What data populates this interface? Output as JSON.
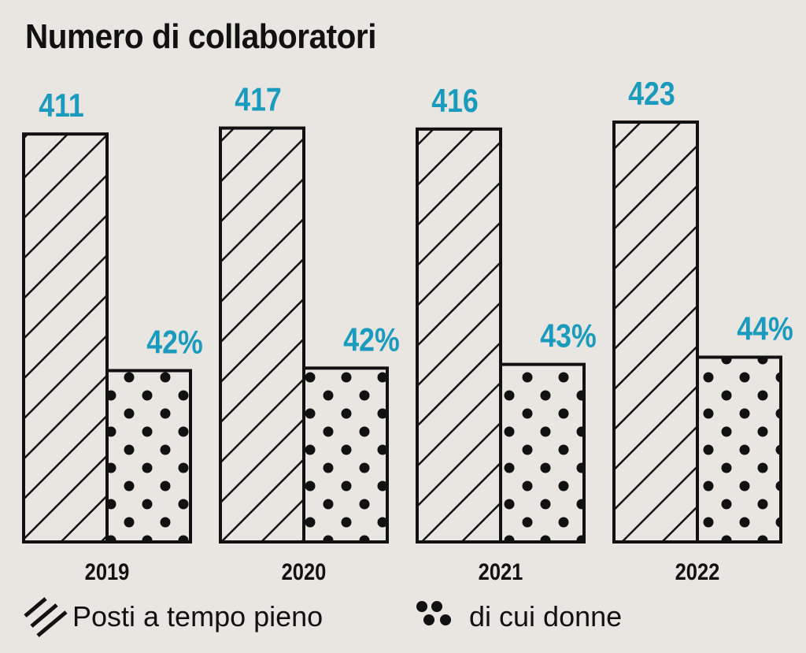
{
  "chart_data": {
    "type": "bar",
    "title": "Numero di collaboratori",
    "categories": [
      "2019",
      "2020",
      "2021",
      "2022"
    ],
    "series": [
      {
        "name": "Posti a tempo pieno",
        "values": [
          411,
          417,
          416,
          423
        ],
        "labels": [
          "411",
          "417",
          "416",
          "423"
        ],
        "pattern": "diagonal-hatch"
      },
      {
        "name": "di cui donne",
        "values_percent": [
          42,
          42,
          43,
          44
        ],
        "labels": [
          "42%",
          "42%",
          "43%",
          "44%"
        ],
        "pattern": "dots"
      }
    ],
    "label_color": "#1a9bbd",
    "xlabel": "",
    "ylabel": "",
    "grid": false,
    "legend_placement": "bottom"
  }
}
